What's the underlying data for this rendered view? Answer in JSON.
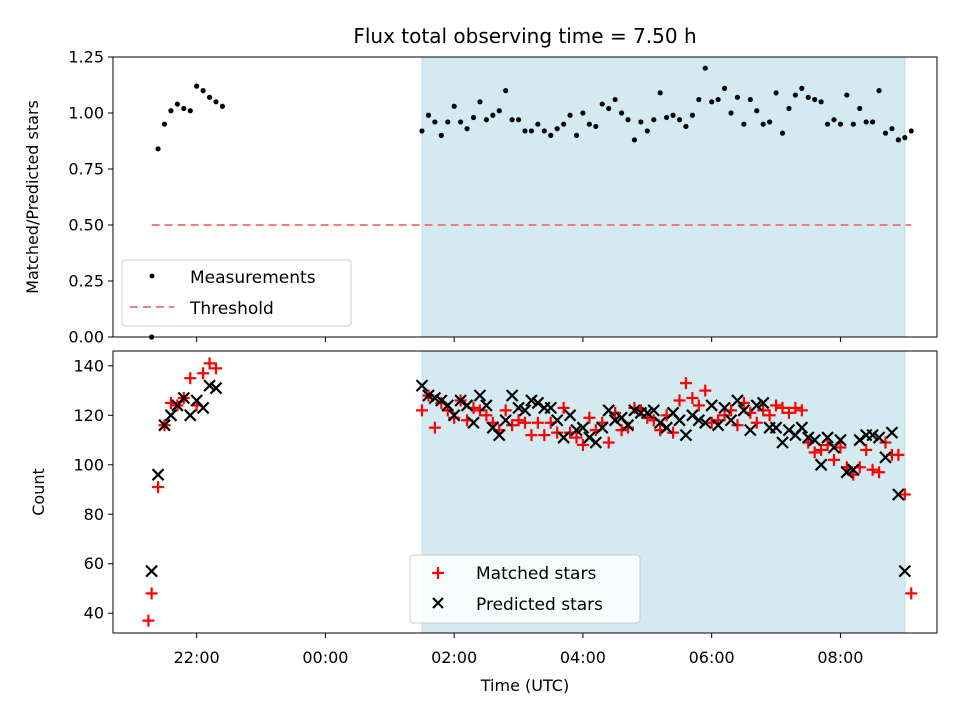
{
  "title": "Flux total observing time = 7.50 h",
  "colors": {
    "observing_window": "#d3eaf1",
    "measurement": "#000000",
    "threshold": "#f08080",
    "matched": "#ff0000",
    "predicted": "#000000"
  },
  "chart_data": [
    {
      "type": "scatter",
      "ylabel": "Matched/Predicted stars",
      "ylim": [
        0,
        1.25
      ],
      "yticks": [
        "0.00",
        "0.25",
        "0.50",
        "0.75",
        "1.00",
        "1.25"
      ],
      "x_unit": "hours relative to 00:00 UTC",
      "xlim": [
        -3.3,
        9.5
      ],
      "observing_window": [
        1.5,
        9.0
      ],
      "legend": {
        "position": "lower-left",
        "entries": [
          "Measurements",
          "Threshold"
        ]
      },
      "threshold": {
        "name": "Threshold",
        "value": 0.5,
        "x_range": [
          -2.7,
          9.1
        ]
      },
      "series": [
        {
          "name": "Measurements",
          "x": [
            -2.7,
            -2.6,
            -2.5,
            -2.4,
            -2.3,
            -2.2,
            -2.1,
            -2.0,
            -1.9,
            -1.8,
            -1.7,
            -1.6,
            1.5,
            1.6,
            1.7,
            1.8,
            1.9,
            2.0,
            2.1,
            2.2,
            2.3,
            2.4,
            2.5,
            2.6,
            2.7,
            2.8,
            2.9,
            3.0,
            3.1,
            3.2,
            3.3,
            3.4,
            3.5,
            3.6,
            3.7,
            3.8,
            3.9,
            4.0,
            4.1,
            4.2,
            4.3,
            4.4,
            4.5,
            4.6,
            4.7,
            4.8,
            4.9,
            5.0,
            5.1,
            5.2,
            5.3,
            5.4,
            5.5,
            5.6,
            5.7,
            5.8,
            5.9,
            6.0,
            6.1,
            6.2,
            6.3,
            6.4,
            6.5,
            6.6,
            6.7,
            6.8,
            6.9,
            7.0,
            7.1,
            7.2,
            7.3,
            7.4,
            7.5,
            7.6,
            7.7,
            7.8,
            7.9,
            8.0,
            8.1,
            8.2,
            8.3,
            8.4,
            8.5,
            8.6,
            8.7,
            8.8,
            8.9,
            9.0,
            9.1
          ],
          "y": [
            0.0,
            0.84,
            0.95,
            1.01,
            1.04,
            1.02,
            1.01,
            1.12,
            1.1,
            1.07,
            1.05,
            1.03,
            0.92,
            0.99,
            0.96,
            0.9,
            0.96,
            1.03,
            0.96,
            0.93,
            0.98,
            1.05,
            0.97,
            0.99,
            1.01,
            1.1,
            0.97,
            0.97,
            0.92,
            0.92,
            0.95,
            0.92,
            0.9,
            0.93,
            0.95,
            0.99,
            0.9,
            1.0,
            0.95,
            0.94,
            1.04,
            1.02,
            1.06,
            1.0,
            0.97,
            0.88,
            0.96,
            0.92,
            0.97,
            1.09,
            0.98,
            0.99,
            0.97,
            0.94,
            0.99,
            1.06,
            1.2,
            1.05,
            1.06,
            1.11,
            1.0,
            1.07,
            0.95,
            1.06,
            1.01,
            0.95,
            0.96,
            1.09,
            0.91,
            1.02,
            1.08,
            1.11,
            1.07,
            1.06,
            1.05,
            0.95,
            0.97,
            0.95,
            1.08,
            0.95,
            1.02,
            0.96,
            0.96,
            1.1,
            0.91,
            0.93,
            0.88,
            0.89,
            0.92
          ]
        }
      ]
    },
    {
      "type": "scatter",
      "ylabel": "Count",
      "xlabel": "Time (UTC)",
      "ylim": [
        32,
        146
      ],
      "yticks": [
        "40",
        "60",
        "80",
        "100",
        "120",
        "140"
      ],
      "xticks": [
        {
          "value": -2.0,
          "label": "22:00"
        },
        {
          "value": 0.0,
          "label": "00:00"
        },
        {
          "value": 2.0,
          "label": "02:00"
        },
        {
          "value": 4.0,
          "label": "04:00"
        },
        {
          "value": 6.0,
          "label": "06:00"
        },
        {
          "value": 8.0,
          "label": "08:00"
        }
      ],
      "x_unit": "hours relative to 00:00 UTC",
      "xlim": [
        -3.3,
        9.5
      ],
      "observing_window": [
        1.5,
        9.0
      ],
      "legend": {
        "position": "lower-center",
        "entries": [
          "Matched stars",
          "Predicted stars"
        ]
      },
      "series": [
        {
          "name": "Matched stars",
          "marker": "plus",
          "x": [
            -2.75,
            -2.7,
            -2.6,
            -2.5,
            -2.4,
            -2.3,
            -2.2,
            -2.1,
            -2.0,
            -1.9,
            -1.8,
            -1.7,
            1.5,
            1.6,
            1.7,
            1.8,
            1.9,
            2.0,
            2.1,
            2.2,
            2.3,
            2.4,
            2.5,
            2.6,
            2.7,
            2.8,
            2.9,
            3.0,
            3.1,
            3.2,
            3.3,
            3.4,
            3.5,
            3.6,
            3.7,
            3.8,
            3.9,
            4.0,
            4.1,
            4.2,
            4.3,
            4.4,
            4.5,
            4.6,
            4.7,
            4.8,
            4.9,
            5.0,
            5.1,
            5.2,
            5.3,
            5.4,
            5.5,
            5.6,
            5.7,
            5.8,
            5.9,
            6.0,
            6.1,
            6.2,
            6.3,
            6.4,
            6.5,
            6.6,
            6.7,
            6.8,
            6.9,
            7.0,
            7.1,
            7.2,
            7.3,
            7.4,
            7.5,
            7.6,
            7.7,
            7.8,
            7.9,
            8.0,
            8.1,
            8.2,
            8.3,
            8.4,
            8.5,
            8.6,
            8.7,
            8.8,
            8.9,
            9.0,
            9.1
          ],
          "y": [
            37,
            48,
            91,
            116,
            125,
            124,
            127,
            135,
            124,
            137,
            141,
            139,
            122,
            128,
            115,
            125,
            122,
            119,
            126,
            118,
            123,
            122,
            120,
            117,
            114,
            122,
            116,
            118,
            117,
            112,
            117,
            112,
            117,
            113,
            123,
            113,
            111,
            108,
            119,
            114,
            117,
            109,
            121,
            114,
            115,
            123,
            122,
            119,
            118,
            114,
            120,
            113,
            126,
            133,
            127,
            124,
            130,
            117,
            118,
            120,
            122,
            116,
            125,
            121,
            117,
            122,
            120,
            124,
            123,
            121,
            123,
            122,
            109,
            105,
            106,
            108,
            102,
            107,
            99,
            96,
            99,
            106,
            98,
            97,
            109,
            104,
            104,
            88,
            48
          ]
        },
        {
          "name": "Predicted stars",
          "marker": "x",
          "x": [
            -2.7,
            -2.6,
            -2.5,
            -2.4,
            -2.3,
            -2.2,
            -2.1,
            -2.0,
            -1.9,
            -1.8,
            -1.7,
            1.5,
            1.6,
            1.7,
            1.8,
            1.9,
            2.0,
            2.1,
            2.2,
            2.3,
            2.4,
            2.5,
            2.6,
            2.7,
            2.8,
            2.9,
            3.0,
            3.1,
            3.2,
            3.3,
            3.4,
            3.5,
            3.6,
            3.7,
            3.8,
            3.9,
            4.0,
            4.1,
            4.2,
            4.3,
            4.4,
            4.5,
            4.6,
            4.7,
            4.8,
            4.9,
            5.0,
            5.1,
            5.2,
            5.3,
            5.4,
            5.5,
            5.6,
            5.7,
            5.8,
            5.9,
            6.0,
            6.1,
            6.2,
            6.3,
            6.4,
            6.5,
            6.6,
            6.7,
            6.8,
            6.9,
            7.0,
            7.1,
            7.2,
            7.3,
            7.4,
            7.5,
            7.6,
            7.7,
            7.8,
            7.9,
            8.0,
            8.1,
            8.2,
            8.3,
            8.4,
            8.5,
            8.6,
            8.7,
            8.8,
            8.9,
            9.0
          ],
          "y": [
            57,
            96,
            116,
            120,
            124,
            127,
            120,
            126,
            123,
            132,
            131,
            132,
            128,
            127,
            126,
            124,
            120,
            126,
            124,
            117,
            128,
            124,
            115,
            112,
            118,
            128,
            123,
            122,
            126,
            125,
            123,
            123,
            118,
            111,
            120,
            114,
            115,
            111,
            109,
            115,
            122,
            118,
            119,
            116,
            122,
            121,
            121,
            122,
            117,
            115,
            121,
            118,
            112,
            120,
            118,
            117,
            124,
            116,
            123,
            118,
            126,
            122,
            114,
            124,
            125,
            115,
            115,
            109,
            114,
            112,
            115,
            111,
            110,
            100,
            111,
            107,
            110,
            97,
            98,
            110,
            112,
            112,
            111,
            103,
            113,
            88,
            57
          ]
        }
      ]
    }
  ]
}
